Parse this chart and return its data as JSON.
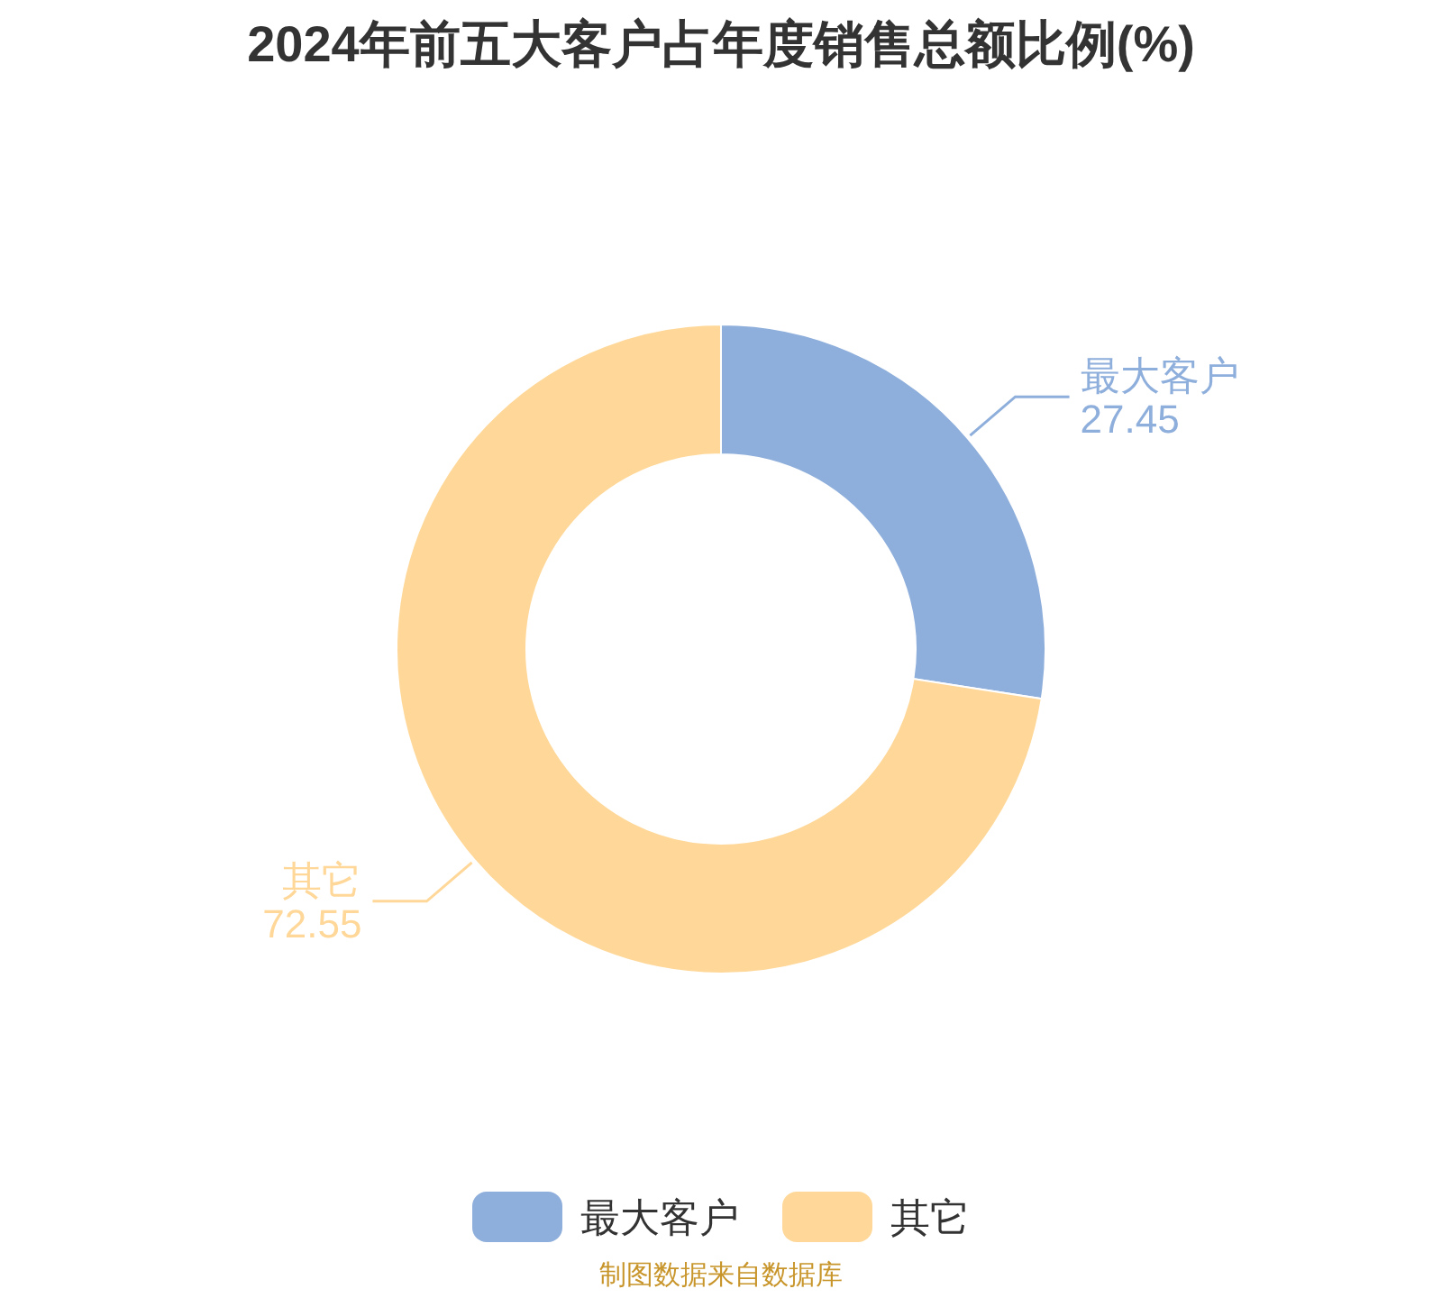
{
  "chart_data": {
    "type": "donut",
    "title": "2024年前五大客户占年度销售总额比例(%)",
    "categories": [
      "最大客户",
      "其它"
    ],
    "values": [
      27.45,
      72.55
    ],
    "colors": [
      "#8eaedb",
      "#ffd899"
    ],
    "data_labels": true,
    "legend": "bottom",
    "annotations": [
      "制图数据来自数据库"
    ]
  }
}
